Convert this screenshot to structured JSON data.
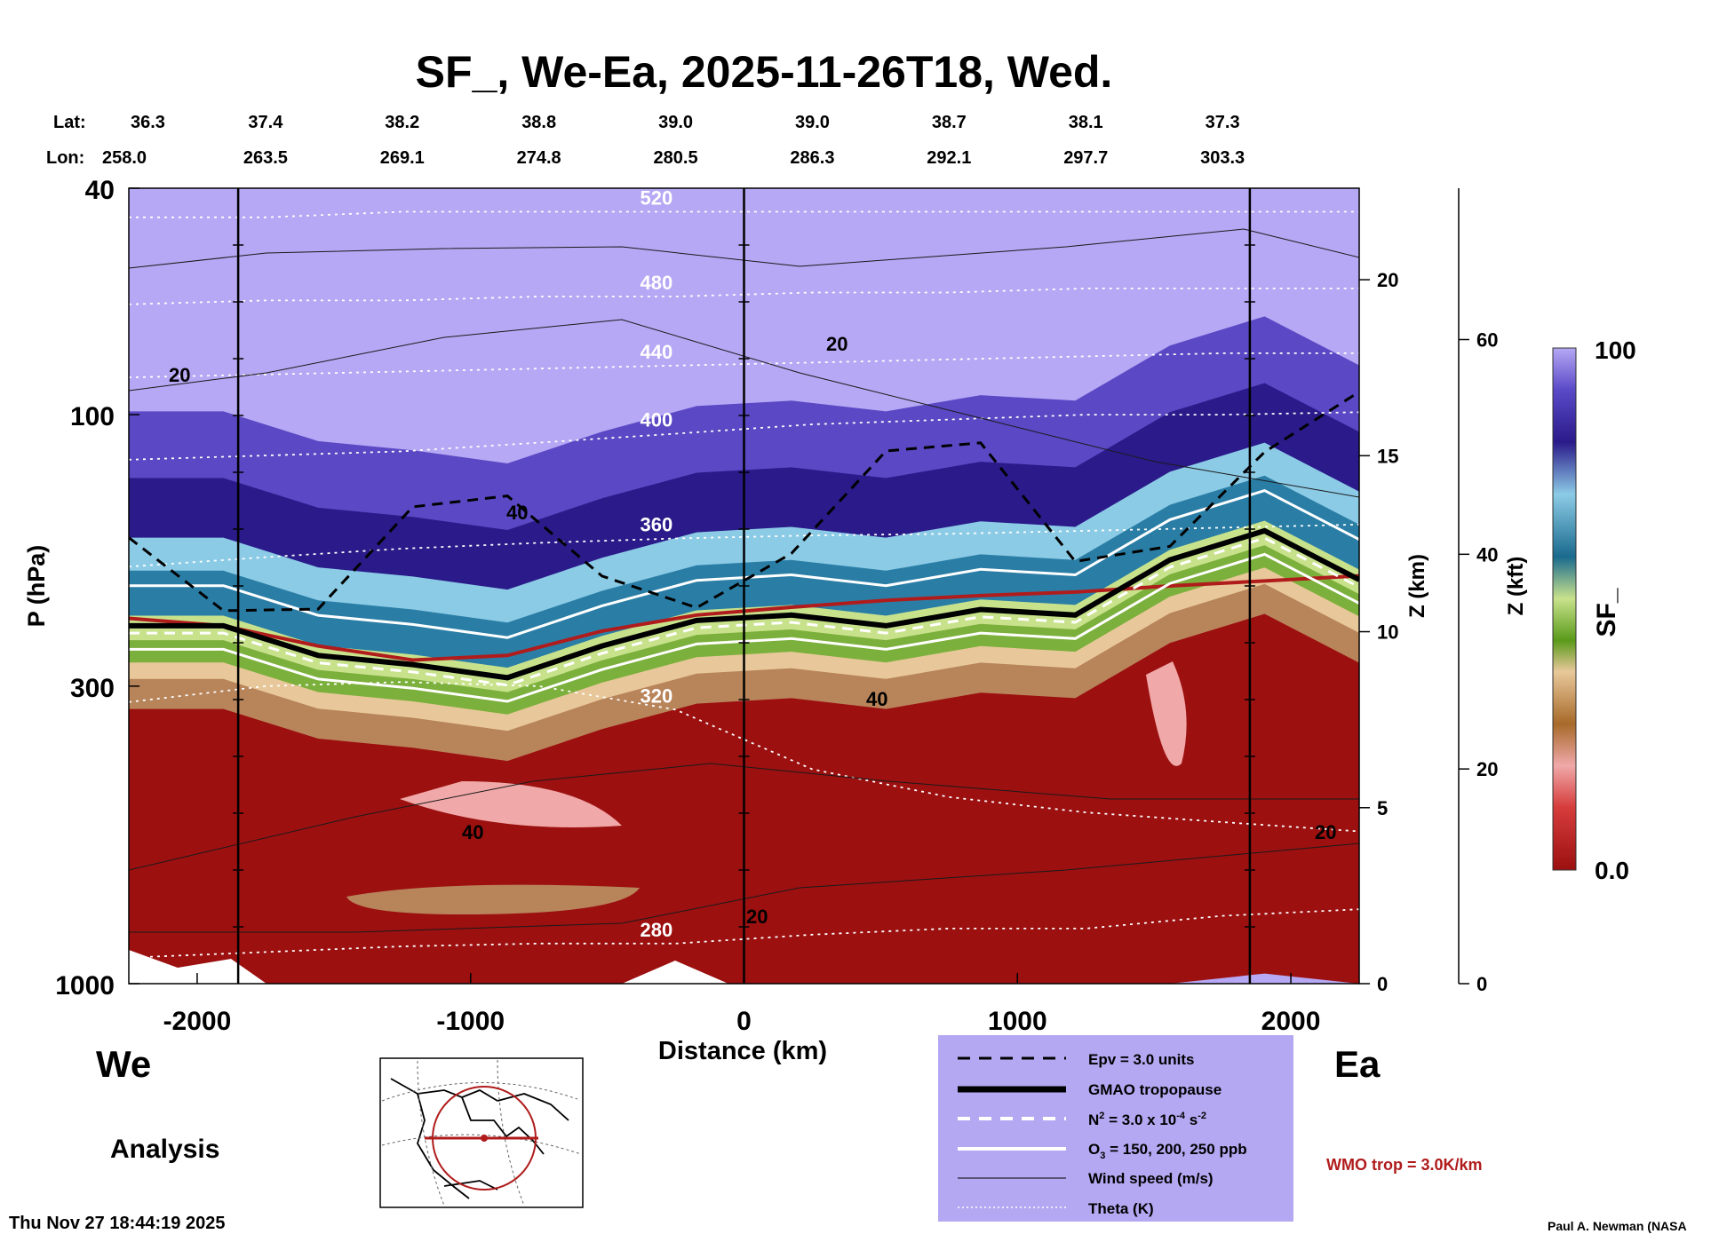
{
  "chart_data": {
    "type": "heatmap",
    "title": "SF_, We-Ea, 2025-11-26T18, Wed.",
    "xlabel": "Distance (km)",
    "ylabel": "P (hPa)",
    "xlim": [
      -2250,
      2250
    ],
    "x_ticks": [
      -2000,
      -1000,
      0,
      1000,
      2000
    ],
    "p_ticks": [
      40,
      100,
      300,
      1000
    ],
    "p_range": [
      40,
      1000
    ],
    "z_km_label": "Z (km)",
    "z_km_ticks": [
      0,
      5,
      10,
      15,
      20
    ],
    "z_kft_label": "Z (kft)",
    "z_kft_ticks": [
      0,
      20,
      40,
      60
    ],
    "colorbar": {
      "label": "SF_",
      "min": "0.0",
      "max": "100"
    },
    "lat_label": "Lat:",
    "lon_label": "Lon:",
    "lat": [
      "36.3",
      "37.4",
      "38.2",
      "38.8",
      "39.0",
      "39.0",
      "38.7",
      "38.1",
      "37.3"
    ],
    "lon": [
      "258.0",
      "263.5",
      "269.1",
      "274.8",
      "280.5",
      "286.3",
      "292.1",
      "297.7",
      "303.3"
    ],
    "tick_km": [
      -2250,
      -1750,
      -1250,
      -750,
      -250,
      250,
      750,
      1250,
      1750
    ],
    "vertical_lines_km": [
      -1850,
      0,
      1850
    ],
    "theta_levels": [
      {
        "theta": 280,
        "p": [
          900,
          880,
          860,
          850,
          850,
          820,
          800,
          800,
          760,
          740
        ],
        "label": "280"
      },
      {
        "theta": 320,
        "p": [
          320,
          300,
          295,
          300,
          330,
          420,
          470,
          500,
          520,
          540
        ],
        "label": "320"
      },
      {
        "theta": 360,
        "p": [
          185,
          178,
          172,
          168,
          165,
          163,
          162,
          160,
          158,
          156
        ],
        "label": "360"
      },
      {
        "theta": 400,
        "p": [
          120,
          118,
          116,
          112,
          108,
          104,
          102,
          100,
          100,
          99
        ],
        "label": "400"
      },
      {
        "theta": 440,
        "p": [
          86,
          85,
          84,
          83,
          82,
          81,
          80,
          79,
          78,
          78
        ],
        "label": "440"
      },
      {
        "theta": 480,
        "p": [
          64,
          63,
          63,
          62,
          62,
          61,
          61,
          60,
          60,
          60
        ],
        "label": "480"
      },
      {
        "theta": 520,
        "p": [
          45,
          45,
          44,
          44,
          44,
          44,
          44,
          44,
          44,
          44
        ],
        "label": "520"
      }
    ],
    "tropopause_gmao_p": [
      235,
      235,
      265,
      275,
      290,
      255,
      230,
      225,
      235,
      220,
      225,
      180,
      160,
      195
    ],
    "wmo_trop_p": [
      228,
      235,
      255,
      270,
      265,
      240,
      225,
      218,
      212,
      208,
      205,
      200,
      196,
      192
    ],
    "wind_labels": [
      "20",
      "20",
      "40",
      "40",
      "40",
      "20",
      "20"
    ],
    "legend": [
      {
        "style": "dash-black",
        "label": "Epv = 3.0 units"
      },
      {
        "style": "thick-black",
        "label": "GMAO tropopause"
      },
      {
        "style": "dash-white",
        "label_main": "N",
        "label_sup1": "2",
        "label_mid": " = 3.0 x 10",
        "label_sup2": "-4",
        "label_end": " s",
        "label_sup3": "-2"
      },
      {
        "style": "solid-white",
        "label_main": "O",
        "label_sub": "3",
        "label_end": " = 150, 200, 250 ppb"
      },
      {
        "style": "thin-black",
        "label": "Wind speed (m/s)"
      },
      {
        "style": "dot-white",
        "label": "Theta (K)"
      }
    ],
    "wmo_label": "WMO trop = 3.0K/km",
    "direction_left": "We",
    "direction_right": "Ea",
    "analysis_label": "Analysis",
    "timestamp": "Thu Nov 27 18:44:19 2025",
    "credit": "Paul A. Newman (NASA"
  },
  "colors": {
    "red": "#9c1010",
    "tan": "#b8845a",
    "green": "#7cb03c",
    "lightgreen": "#c8e28c",
    "teal": "#2a7ea6",
    "lightblue": "#8ccbe6",
    "navy": "#2a1a8a",
    "purple": "#6a5ad0",
    "lavender": "#b6a8f4",
    "legend_bg": "#b4a8f2",
    "wmo": "#b01c1c"
  }
}
